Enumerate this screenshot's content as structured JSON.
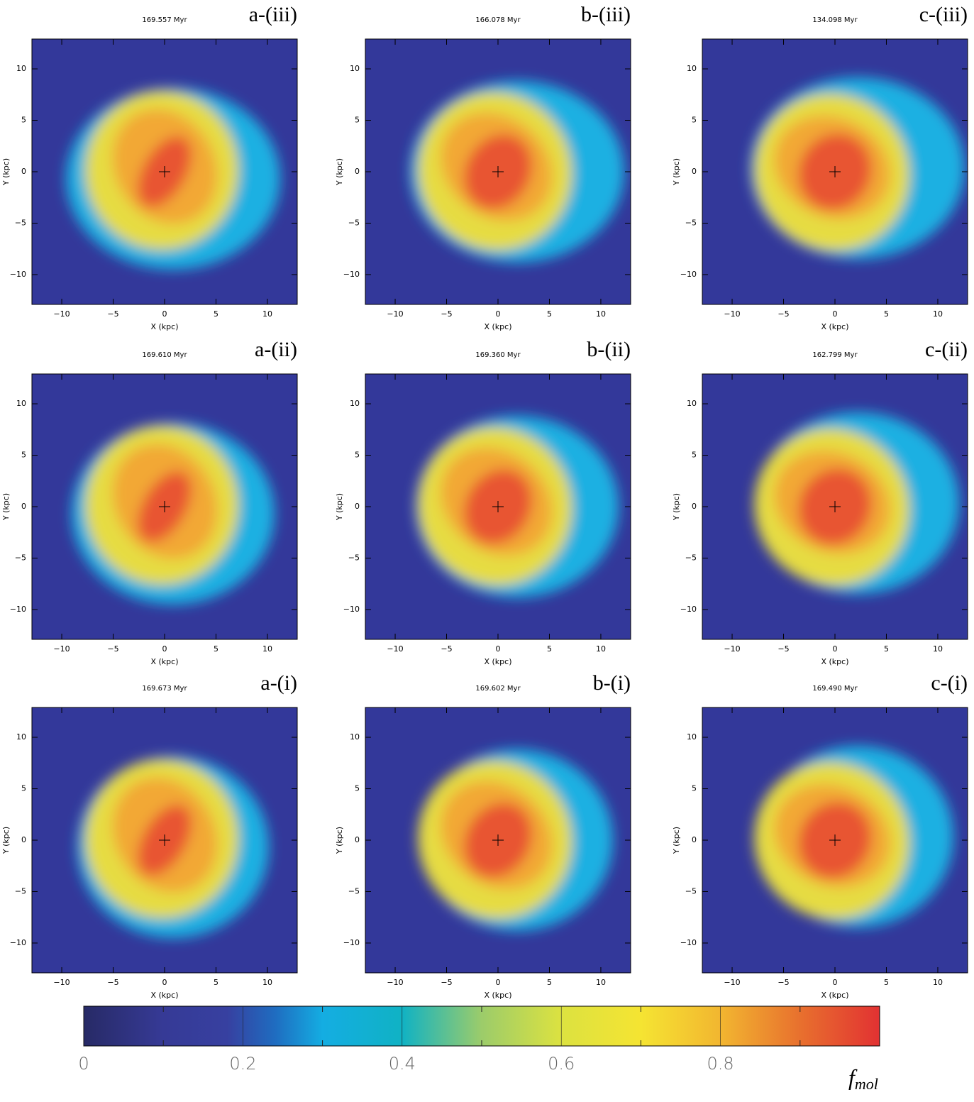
{
  "panels": [
    {
      "time": "169.557 Myr",
      "label": "a-(iii)"
    },
    {
      "time": "166.078 Myr",
      "label": "b-(iii)"
    },
    {
      "time": "134.098 Myr",
      "label": "c-(iii)"
    },
    {
      "time": "169.610 Myr",
      "label": "a-(ii)"
    },
    {
      "time": "169.360 Myr",
      "label": "b-(ii)"
    },
    {
      "time": "162.799 Myr",
      "label": "c-(ii)"
    },
    {
      "time": "169.673 Myr",
      "label": "a-(i)"
    },
    {
      "time": "169.602 Myr",
      "label": "b-(i)"
    },
    {
      "time": "169.490 Myr",
      "label": "c-(i)"
    }
  ],
  "axes": {
    "xlabel": "X (kpc)",
    "ylabel": "Y (kpc)",
    "xlim": [
      -12.9,
      12.9
    ],
    "ylim": [
      -12.9,
      12.9
    ],
    "xticks": [
      {
        "value": -10,
        "label": "−10"
      },
      {
        "value": -5,
        "label": "−5"
      },
      0,
      5,
      10
    ],
    "yticks": [
      {
        "value": -10,
        "label": "−10"
      },
      {
        "value": -5,
        "label": "−5"
      },
      0,
      5,
      10
    ]
  },
  "colorbar": {
    "lim": [
      0,
      1
    ],
    "ticks": [
      0,
      0.2,
      0.4,
      0.6,
      0.8
    ],
    "minor_ticks": [
      0.1,
      0.3,
      0.5,
      0.7,
      0.9
    ],
    "label": "f",
    "label_sub": "mol"
  }
}
